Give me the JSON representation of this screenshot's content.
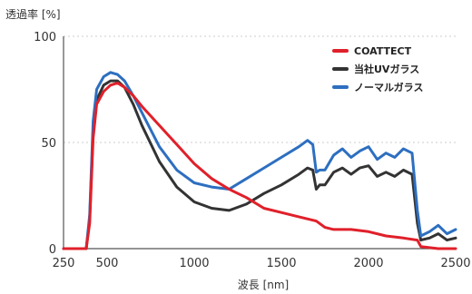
{
  "chart_data": {
    "type": "line",
    "ylabel": "透過率 [%]",
    "xlabel": "波長 [nm]",
    "xlim": [
      250,
      2500
    ],
    "ylim": [
      0,
      100
    ],
    "x_ticks": [
      250,
      500,
      1000,
      1500,
      2000,
      2500
    ],
    "y_ticks": [
      0,
      50,
      100
    ],
    "grid": "dotted horizontal at 50 and 100",
    "legend_position": "top-right",
    "series": [
      {
        "name": "COATTECT",
        "color": "#e0202a",
        "points": [
          [
            250,
            0
          ],
          [
            380,
            0
          ],
          [
            400,
            12
          ],
          [
            420,
            52
          ],
          [
            440,
            68
          ],
          [
            480,
            74
          ],
          [
            520,
            77
          ],
          [
            560,
            78
          ],
          [
            600,
            76
          ],
          [
            650,
            72
          ],
          [
            700,
            67
          ],
          [
            800,
            58
          ],
          [
            900,
            49
          ],
          [
            1000,
            40
          ],
          [
            1100,
            33
          ],
          [
            1200,
            28
          ],
          [
            1300,
            24
          ],
          [
            1400,
            19
          ],
          [
            1500,
            17
          ],
          [
            1600,
            15
          ],
          [
            1700,
            13
          ],
          [
            1750,
            10
          ],
          [
            1800,
            9
          ],
          [
            1900,
            9
          ],
          [
            2000,
            8
          ],
          [
            2100,
            6
          ],
          [
            2200,
            5
          ],
          [
            2280,
            4
          ],
          [
            2300,
            1
          ],
          [
            2400,
            0
          ],
          [
            2500,
            0
          ]
        ]
      },
      {
        "name": "当社UVガラス",
        "color": "#333333",
        "points": [
          [
            250,
            0
          ],
          [
            380,
            0
          ],
          [
            400,
            14
          ],
          [
            420,
            55
          ],
          [
            440,
            70
          ],
          [
            480,
            77
          ],
          [
            520,
            79
          ],
          [
            560,
            79
          ],
          [
            600,
            76
          ],
          [
            650,
            68
          ],
          [
            700,
            58
          ],
          [
            800,
            41
          ],
          [
            900,
            29
          ],
          [
            1000,
            22
          ],
          [
            1100,
            19
          ],
          [
            1200,
            18
          ],
          [
            1300,
            21
          ],
          [
            1400,
            26
          ],
          [
            1500,
            30
          ],
          [
            1600,
            35
          ],
          [
            1650,
            38
          ],
          [
            1680,
            37
          ],
          [
            1700,
            28
          ],
          [
            1720,
            30
          ],
          [
            1750,
            30
          ],
          [
            1800,
            36
          ],
          [
            1850,
            38
          ],
          [
            1900,
            35
          ],
          [
            1950,
            38
          ],
          [
            2000,
            39
          ],
          [
            2050,
            34
          ],
          [
            2100,
            36
          ],
          [
            2150,
            34
          ],
          [
            2200,
            37
          ],
          [
            2250,
            35
          ],
          [
            2280,
            12
          ],
          [
            2300,
            4
          ],
          [
            2350,
            5
          ],
          [
            2400,
            7
          ],
          [
            2450,
            4
          ],
          [
            2500,
            5
          ]
        ]
      },
      {
        "name": "ノーマルガラス",
        "color": "#2d6fc0",
        "points": [
          [
            250,
            0
          ],
          [
            380,
            0
          ],
          [
            400,
            16
          ],
          [
            420,
            60
          ],
          [
            440,
            75
          ],
          [
            480,
            81
          ],
          [
            520,
            83
          ],
          [
            560,
            82
          ],
          [
            600,
            79
          ],
          [
            650,
            72
          ],
          [
            700,
            64
          ],
          [
            800,
            48
          ],
          [
            900,
            37
          ],
          [
            1000,
            31
          ],
          [
            1100,
            29
          ],
          [
            1200,
            28
          ],
          [
            1300,
            33
          ],
          [
            1400,
            38
          ],
          [
            1500,
            43
          ],
          [
            1600,
            48
          ],
          [
            1650,
            51
          ],
          [
            1680,
            49
          ],
          [
            1700,
            36
          ],
          [
            1720,
            37
          ],
          [
            1750,
            37
          ],
          [
            1800,
            44
          ],
          [
            1850,
            47
          ],
          [
            1900,
            43
          ],
          [
            1950,
            46
          ],
          [
            2000,
            48
          ],
          [
            2050,
            42
          ],
          [
            2100,
            45
          ],
          [
            2150,
            43
          ],
          [
            2200,
            47
          ],
          [
            2250,
            45
          ],
          [
            2280,
            18
          ],
          [
            2300,
            6
          ],
          [
            2350,
            8
          ],
          [
            2400,
            11
          ],
          [
            2450,
            7
          ],
          [
            2500,
            9
          ]
        ]
      }
    ]
  }
}
